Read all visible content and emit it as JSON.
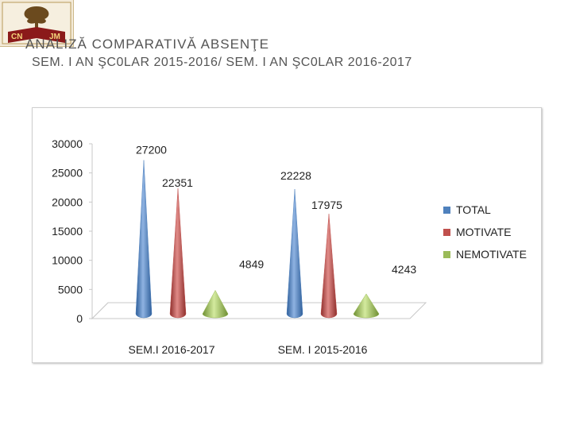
{
  "header": {
    "title": "ANALIZĂ COMPARATIVĂ ABSENŢE",
    "subtitle": "SEM. I AN ŞC0LAR 2015-2016/ SEM. I AN ŞC0LAR 2016-2017"
  },
  "logo": {
    "text_left": "CN",
    "text_right": "JM"
  },
  "colors": {
    "total": "#4f81bd",
    "motivate": "#c0504d",
    "nemotivate": "#9bbb59"
  },
  "chart_data": {
    "type": "bar",
    "variant": "3d-cone",
    "categories": [
      "SEM.I 2016-2017",
      "SEM. I 2015-2016"
    ],
    "series": [
      {
        "name": "TOTAL",
        "values": [
          27200,
          22228
        ]
      },
      {
        "name": "MOTIVATE",
        "values": [
          22351,
          17975
        ]
      },
      {
        "name": "NEMOTIVATE",
        "values": [
          4849,
          4243
        ]
      }
    ],
    "ylim": [
      0,
      30000
    ],
    "yticks": [
      "0",
      "5000",
      "10000",
      "15000",
      "20000",
      "25000",
      "30000"
    ],
    "data_labels": [
      [
        "27200",
        "22228"
      ],
      [
        "22351",
        "17975"
      ],
      [
        "4849",
        "4243"
      ]
    ],
    "legend_position": "right",
    "grid": false
  }
}
